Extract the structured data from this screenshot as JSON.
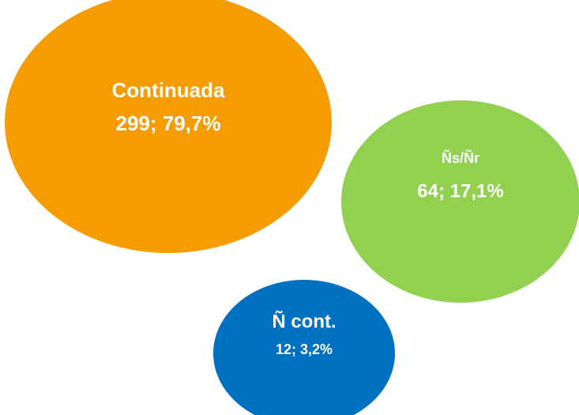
{
  "chart_data": {
    "type": "bubble",
    "categories": [
      "Continuada",
      "Ñs/Ñr",
      "Ñ cont."
    ],
    "values": [
      299,
      64,
      12
    ],
    "percents": [
      79.7,
      17.1,
      3.2
    ],
    "value_labels": [
      "299; 79,7%",
      "64; 17,1%",
      "12; 3,2%"
    ],
    "colors": [
      "#f59c00",
      "#92d050",
      "#0070c0"
    ]
  }
}
